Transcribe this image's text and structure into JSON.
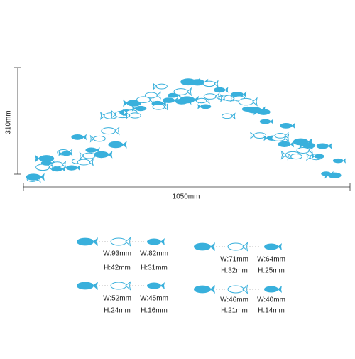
{
  "dimensions": {
    "height": "310mm",
    "width": "1050mm"
  },
  "sizes": [
    {
      "width": "W:93mm",
      "height": "H:42mm"
    },
    {
      "width": "W:82mm",
      "height": "H:31mm"
    },
    {
      "width": "W:71mm",
      "height": "H:32mm"
    },
    {
      "width": "W:64mm",
      "height": "H:25mm"
    },
    {
      "width": "W:52mm",
      "height": "H:24mm"
    },
    {
      "width": "W:45mm",
      "height": "H:16mm"
    },
    {
      "width": "W:46mm",
      "height": "H:21mm"
    },
    {
      "width": "W:40mm",
      "height": "H:14mm"
    }
  ]
}
